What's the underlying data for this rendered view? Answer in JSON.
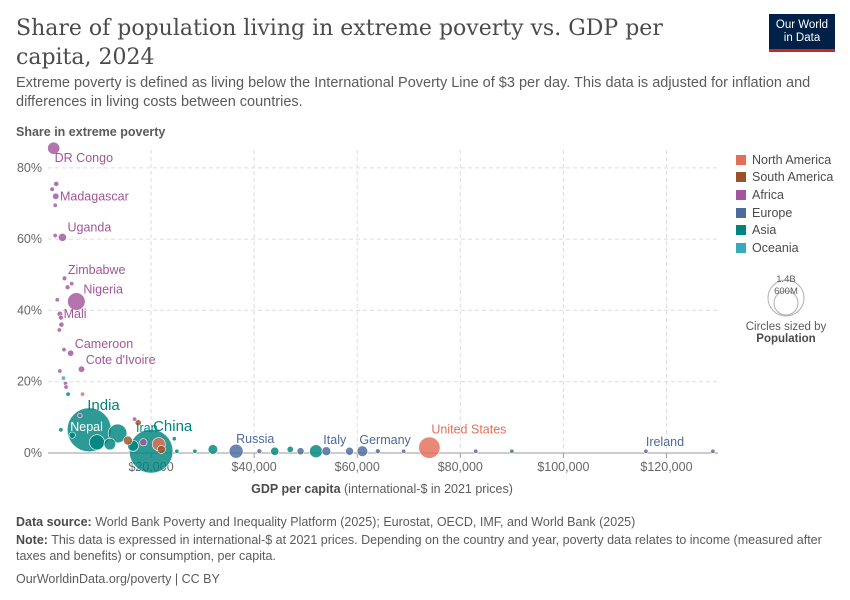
{
  "header": {
    "title": "Share of population living in extreme poverty vs. GDP per capita, 2024",
    "subtitle": "Extreme poverty is defined as living below the International Poverty Line of $3 per day. This data is adjusted for inflation and differences in living costs between countries.",
    "logo_line1": "Our World",
    "logo_line2": "in Data"
  },
  "legend": {
    "items": [
      {
        "label": "North America",
        "color": "#e56e5a"
      },
      {
        "label": "South America",
        "color": "#9a5129"
      },
      {
        "label": "Africa",
        "color": "#a2559c"
      },
      {
        "label": "Europe",
        "color": "#4c6a9c"
      },
      {
        "label": "Asia",
        "color": "#00847e"
      },
      {
        "label": "Oceania",
        "color": "#38aaba"
      }
    ],
    "size_large": "1.4B",
    "size_small": "600M",
    "size_caption1": "Circles sized by",
    "size_caption2": "Population"
  },
  "footer": {
    "source_label": "Data source:",
    "source_text": "World Bank Poverty and Inequality Platform (2025); Eurostat, OECD, IMF, and World Bank (2025)",
    "note_label": "Note:",
    "note_text": "This data is expressed in international-$ at 2021 prices. Depending on the country and year, poverty data relates to income (measured after taxes and benefits) or consumption, per capita.",
    "url": "OurWorldinData.org/poverty | CC BY"
  },
  "chart_data": {
    "type": "scatter",
    "title": "Share of population living in extreme poverty vs. GDP per capita, 2024",
    "ylabel": "Share in extreme poverty",
    "xlabel": "GDP per capita",
    "xlabel_suffix": "(international-$ in 2021 prices)",
    "xlim": [
      0,
      130000
    ],
    "ylim": [
      0,
      85
    ],
    "x_ticks": [
      {
        "value": 20000,
        "label": "$20,000"
      },
      {
        "value": 40000,
        "label": "$40,000"
      },
      {
        "value": 60000,
        "label": "$60,000"
      },
      {
        "value": 80000,
        "label": "$80,000"
      },
      {
        "value": 100000,
        "label": "$100,000"
      },
      {
        "value": 120000,
        "label": "$120,000"
      }
    ],
    "y_ticks": [
      {
        "value": 0,
        "label": "0%"
      },
      {
        "value": 20,
        "label": "20%"
      },
      {
        "value": 40,
        "label": "40%"
      },
      {
        "value": 60,
        "label": "60%"
      },
      {
        "value": 80,
        "label": "80%"
      }
    ],
    "grid": true,
    "legend_position": "right",
    "points": [
      {
        "x": 1100,
        "y": 85.5,
        "region": "Africa",
        "pop_m": 110,
        "label": "DR Congo"
      },
      {
        "x": 1600,
        "y": 75.5,
        "region": "Africa",
        "pop_m": 20
      },
      {
        "x": 800,
        "y": 74,
        "region": "Africa",
        "pop_m": 15
      },
      {
        "x": 1500,
        "y": 72,
        "region": "Africa",
        "pop_m": 31,
        "label": "Madagascar"
      },
      {
        "x": 1400,
        "y": 69.5,
        "region": "Africa",
        "pop_m": 14
      },
      {
        "x": 1400,
        "y": 61,
        "region": "Africa",
        "pop_m": 12
      },
      {
        "x": 2800,
        "y": 60.5,
        "region": "Africa",
        "pop_m": 49,
        "label": "Uganda"
      },
      {
        "x": 3200,
        "y": 49,
        "region": "Africa",
        "pop_m": 16,
        "label": "Zimbabwe"
      },
      {
        "x": 3800,
        "y": 46.5,
        "region": "Africa",
        "pop_m": 18
      },
      {
        "x": 4600,
        "y": 47.5,
        "region": "Africa",
        "pop_m": 13
      },
      {
        "x": 1800,
        "y": 43,
        "region": "Africa",
        "pop_m": 10
      },
      {
        "x": 5500,
        "y": 42.5,
        "region": "Africa",
        "pop_m": 230,
        "label": "Nigeria"
      },
      {
        "x": 2300,
        "y": 39,
        "region": "Africa",
        "pop_m": 23,
        "label": "Mali"
      },
      {
        "x": 2500,
        "y": 38,
        "region": "Africa",
        "pop_m": 18
      },
      {
        "x": 2600,
        "y": 36,
        "region": "Africa",
        "pop_m": 20
      },
      {
        "x": 2200,
        "y": 34.5,
        "region": "Africa",
        "pop_m": 10
      },
      {
        "x": 3100,
        "y": 29,
        "region": "Africa",
        "pop_m": 10
      },
      {
        "x": 4400,
        "y": 28,
        "region": "Africa",
        "pop_m": 29,
        "label": "Cameroon"
      },
      {
        "x": 2300,
        "y": 23,
        "region": "Africa",
        "pop_m": 9
      },
      {
        "x": 6500,
        "y": 23.5,
        "region": "Africa",
        "pop_m": 31,
        "label": "Cote d'Ivoire"
      },
      {
        "x": 3000,
        "y": 21,
        "region": "Oceania",
        "pop_m": 10
      },
      {
        "x": 3400,
        "y": 19.5,
        "region": "Africa",
        "pop_m": 12
      },
      {
        "x": 3500,
        "y": 18.5,
        "region": "Africa",
        "pop_m": 10
      },
      {
        "x": 3900,
        "y": 16.5,
        "region": "Asia",
        "pop_m": 10
      },
      {
        "x": 6700,
        "y": 16.5,
        "region": "North America",
        "pop_m": 11
      },
      {
        "x": 6200,
        "y": 10.5,
        "region": "Africa",
        "pop_m": 12
      },
      {
        "x": 16800,
        "y": 9.5,
        "region": "Africa",
        "pop_m": 9
      },
      {
        "x": 17500,
        "y": 8.5,
        "region": "South America",
        "pop_m": 28
      },
      {
        "x": 8000,
        "y": 6.5,
        "region": "Asia",
        "pop_m": 1430,
        "label": "India"
      },
      {
        "x": 2500,
        "y": 6.5,
        "region": "Asia",
        "pop_m": 10
      },
      {
        "x": 4700,
        "y": 5,
        "region": "Asia",
        "pop_m": 30,
        "label": "Nepal"
      },
      {
        "x": 13500,
        "y": 5.5,
        "region": "Asia",
        "pop_m": 260
      },
      {
        "x": 15500,
        "y": 3.5,
        "region": "South America",
        "pop_m": 60
      },
      {
        "x": 18500,
        "y": 3,
        "region": "Africa",
        "pop_m": 40
      },
      {
        "x": 16500,
        "y": 2,
        "region": "Asia",
        "pop_m": 89,
        "label": "Iran"
      },
      {
        "x": 21500,
        "y": 2.5,
        "region": "North America",
        "pop_m": 128
      },
      {
        "x": 24500,
        "y": 4,
        "region": "Asia",
        "pop_m": 10
      },
      {
        "x": 9500,
        "y": 3,
        "region": "Asia",
        "pop_m": 170
      },
      {
        "x": 12000,
        "y": 2.5,
        "region": "Asia",
        "pop_m": 100
      },
      {
        "x": 20000,
        "y": 0.5,
        "region": "Asia",
        "pop_m": 1410,
        "label": "China"
      },
      {
        "x": 22000,
        "y": 1,
        "region": "South America",
        "pop_m": 50
      },
      {
        "x": 25000,
        "y": 0.5,
        "region": "Asia",
        "pop_m": 14
      },
      {
        "x": 32000,
        "y": 1,
        "region": "Asia",
        "pop_m": 70
      },
      {
        "x": 28500,
        "y": 0.5,
        "region": "Asia",
        "pop_m": 12
      },
      {
        "x": 36500,
        "y": 0.5,
        "region": "Europe",
        "pop_m": 144,
        "label": "Russia"
      },
      {
        "x": 41000,
        "y": 0.5,
        "region": "Europe",
        "pop_m": 18
      },
      {
        "x": 44000,
        "y": 0.5,
        "region": "Asia",
        "pop_m": 51
      },
      {
        "x": 47000,
        "y": 1,
        "region": "Asia",
        "pop_m": 30
      },
      {
        "x": 49000,
        "y": 0.5,
        "region": "Europe",
        "pop_m": 38
      },
      {
        "x": 52000,
        "y": 0.5,
        "region": "Asia",
        "pop_m": 124
      },
      {
        "x": 54000,
        "y": 0.5,
        "region": "Europe",
        "pop_m": 59,
        "label": "Italy"
      },
      {
        "x": 58500,
        "y": 0.5,
        "region": "Europe",
        "pop_m": 48
      },
      {
        "x": 61000,
        "y": 0.5,
        "region": "Europe",
        "pop_m": 84,
        "label": "Germany"
      },
      {
        "x": 64000,
        "y": 0.5,
        "region": "Europe",
        "pop_m": 18
      },
      {
        "x": 69000,
        "y": 0.5,
        "region": "Europe",
        "pop_m": 10
      },
      {
        "x": 74000,
        "y": 1.5,
        "region": "North America",
        "pop_m": 340,
        "label": "United States"
      },
      {
        "x": 83000,
        "y": 0.5,
        "region": "Europe",
        "pop_m": 9
      },
      {
        "x": 90000,
        "y": 0.5,
        "region": "Europe",
        "pop_m": 6
      },
      {
        "x": 116000,
        "y": 0.5,
        "region": "Europe",
        "pop_m": 5,
        "label": "Ireland"
      },
      {
        "x": 129000,
        "y": 0.5,
        "region": "Europe",
        "pop_m": 1
      }
    ]
  }
}
